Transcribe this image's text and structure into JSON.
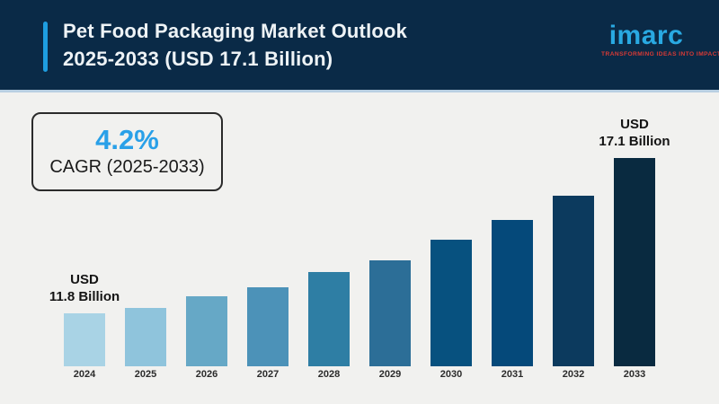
{
  "header": {
    "title_line1": "Pet Food Packaging Market Outlook",
    "title_line2": "2025-2033 (USD 17.1 Billion)",
    "background_color": "#0a2a47",
    "accent_color": "#1e9de0",
    "logo": {
      "text": "imarc",
      "tagline": "TRANSFORMING IDEAS INTO IMPACT",
      "text_color": "#29a9e2",
      "tagline_color": "#d93a35"
    }
  },
  "cagr_box": {
    "value": "4.2%",
    "label": "CAGR (2025-2033)",
    "value_color": "#29a0e8"
  },
  "chart_data": {
    "type": "bar",
    "title": "Pet Food Packaging Market Outlook 2025-2033 (USD 17.1 Billion)",
    "unit": "USD Billion",
    "categories": [
      "2024",
      "2025",
      "2026",
      "2027",
      "2028",
      "2029",
      "2030",
      "2031",
      "2032",
      "2033"
    ],
    "values": [
      11.8,
      12.0,
      12.4,
      12.7,
      13.2,
      13.6,
      14.3,
      15.0,
      15.8,
      17.1
    ],
    "bar_colors": [
      "#a9d3e5",
      "#8fc4dc",
      "#66a8c6",
      "#4c92b8",
      "#2e7ea4",
      "#2c6e97",
      "#07517f",
      "#05497a",
      "#0c3a5e",
      "#092a40"
    ],
    "annotations": [
      {
        "category": "2024",
        "lines": [
          "USD",
          "11.8 Billion"
        ]
      },
      {
        "category": "2033",
        "lines": [
          "USD",
          "17.1 Billion"
        ]
      }
    ],
    "ylim": [
      10,
      17.1
    ],
    "xlabel": "",
    "ylabel": "",
    "grid": false,
    "legend": false
  }
}
